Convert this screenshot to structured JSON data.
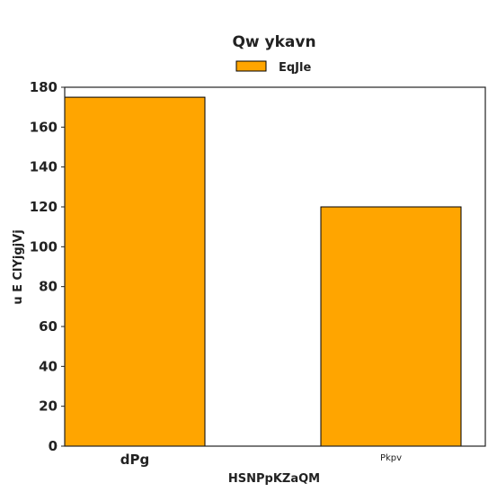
{
  "chart_data": {
    "type": "bar",
    "title": "Qw  ykavn",
    "xlabel": "HSNPpKZaQM",
    "ylabel": "u E  ClYjgjVj",
    "categories": [
      "dPg",
      "Pkpv"
    ],
    "series": [
      {
        "name": "EqJle",
        "values": [
          175,
          120
        ],
        "color": "#ffa500"
      }
    ],
    "ylim": [
      0,
      180
    ],
    "yticks": [
      0,
      20,
      40,
      60,
      80,
      100,
      120,
      140,
      160,
      180
    ],
    "grid": false,
    "legend_position": "top-center"
  }
}
